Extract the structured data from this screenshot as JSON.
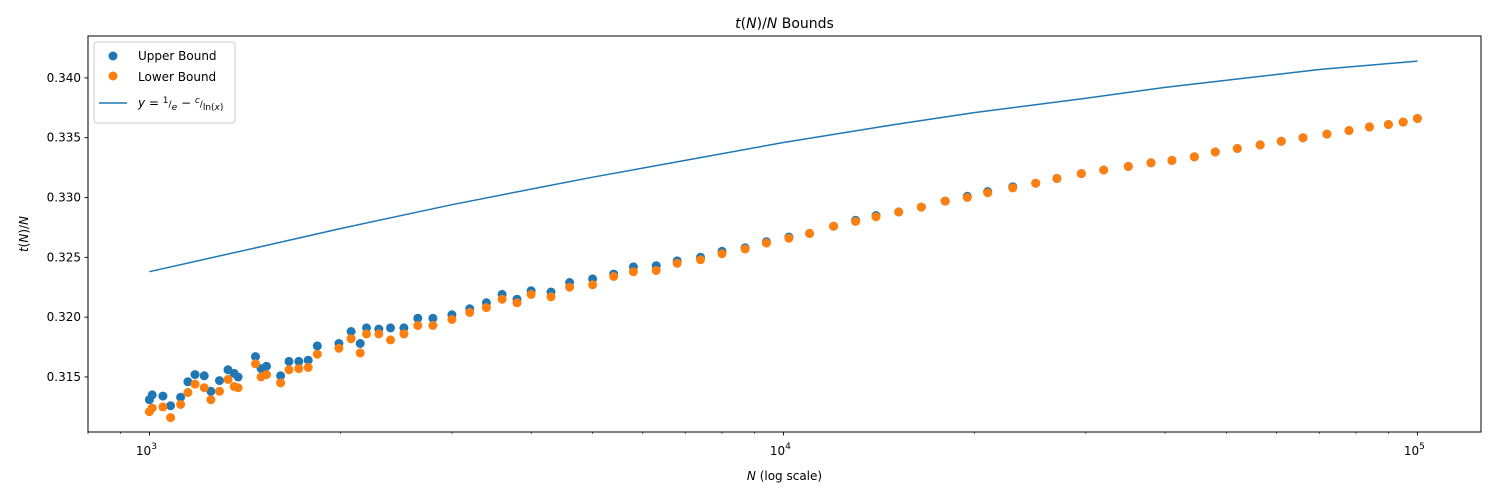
{
  "chart_data": {
    "type": "scatter",
    "title": "t(N)/N Bounds",
    "xlabel": "N (log scale)",
    "ylabel": "t(N)/N",
    "xscale": "log",
    "xlim": [
      800,
      126000
    ],
    "ylim": [
      0.3104,
      0.3435
    ],
    "grid": false,
    "legend_placement": "top-left",
    "x_ticks": [
      1000,
      10000,
      100000
    ],
    "x_tick_labels": [
      {
        "base": "10",
        "exp": "3"
      },
      {
        "base": "10",
        "exp": "4"
      },
      {
        "base": "10",
        "exp": "5"
      }
    ],
    "y_ticks": [
      0.315,
      0.32,
      0.325,
      0.33,
      0.335,
      0.34
    ],
    "y_tick_labels": [
      "0.315",
      "0.320",
      "0.325",
      "0.330",
      "0.335",
      "0.340"
    ],
    "series": [
      {
        "name": "Upper Bound",
        "kind": "scatter",
        "color": "#1f77b4",
        "x": [
          1000,
          1010,
          1050,
          1080,
          1120,
          1150,
          1180,
          1220,
          1250,
          1290,
          1330,
          1360,
          1380,
          1470,
          1500,
          1530,
          1610,
          1660,
          1720,
          1780,
          1840,
          1990,
          2080,
          2150,
          2200,
          2300,
          2400,
          2520,
          2650,
          2800,
          3000,
          3200,
          3400,
          3600,
          3800,
          4000,
          4300,
          4600,
          5000,
          5400,
          5800,
          6300,
          6800,
          7400,
          8000,
          8700,
          9400,
          10200,
          11000,
          12000,
          13000,
          14000,
          15200,
          16500,
          18000,
          19500,
          21000,
          23000,
          25000,
          27000,
          29500,
          32000,
          35000,
          38000,
          41000,
          44500,
          48000,
          52000,
          56500,
          61000,
          66000,
          72000,
          78000,
          84000,
          90000,
          95000,
          100000
        ],
        "y": [
          0.3131,
          0.3135,
          0.3134,
          0.3126,
          0.3133,
          0.3146,
          0.3152,
          0.3151,
          0.3138,
          0.3147,
          0.3156,
          0.3153,
          0.315,
          0.3167,
          0.3157,
          0.3159,
          0.3151,
          0.3163,
          0.3163,
          0.3164,
          0.3176,
          0.3178,
          0.3188,
          0.3178,
          0.3191,
          0.319,
          0.3191,
          0.3191,
          0.3199,
          0.3199,
          0.3202,
          0.3207,
          0.3212,
          0.3219,
          0.3215,
          0.3222,
          0.3221,
          0.3229,
          0.3232,
          0.3236,
          0.3242,
          0.3243,
          0.3247,
          0.325,
          0.3255,
          0.3258,
          0.3263,
          0.3267,
          0.327,
          0.3276,
          0.3281,
          0.3285,
          0.3288,
          0.3292,
          0.3297,
          0.3301,
          0.3305,
          0.3309,
          0.3312,
          0.3316,
          0.332,
          0.3323,
          0.3326,
          0.3329,
          0.3331,
          0.3334,
          0.3338,
          0.3341,
          0.3344,
          0.3347,
          0.335,
          0.3353,
          0.3356,
          0.3359,
          0.3361,
          0.3363,
          0.3366
        ]
      },
      {
        "name": "Lower Bound",
        "kind": "scatter",
        "color": "#ff7f0e",
        "x": [
          1000,
          1010,
          1050,
          1080,
          1120,
          1150,
          1180,
          1220,
          1250,
          1290,
          1330,
          1360,
          1380,
          1470,
          1500,
          1530,
          1610,
          1660,
          1720,
          1780,
          1840,
          1990,
          2080,
          2150,
          2200,
          2300,
          2400,
          2520,
          2650,
          2800,
          3000,
          3200,
          3400,
          3600,
          3800,
          4000,
          4300,
          4600,
          5000,
          5400,
          5800,
          6300,
          6800,
          7400,
          8000,
          8700,
          9400,
          10200,
          11000,
          12000,
          13000,
          14000,
          15200,
          16500,
          18000,
          19500,
          21000,
          23000,
          25000,
          27000,
          29500,
          32000,
          35000,
          38000,
          41000,
          44500,
          48000,
          52000,
          56500,
          61000,
          66000,
          72000,
          78000,
          84000,
          90000,
          95000,
          100000
        ],
        "y": [
          0.3121,
          0.3124,
          0.3125,
          0.3116,
          0.3127,
          0.3137,
          0.3144,
          0.3141,
          0.3131,
          0.3138,
          0.3148,
          0.3142,
          0.3141,
          0.3161,
          0.315,
          0.3152,
          0.3145,
          0.3156,
          0.3157,
          0.3158,
          0.3169,
          0.3174,
          0.3182,
          0.317,
          0.3186,
          0.3186,
          0.3181,
          0.3186,
          0.3193,
          0.3193,
          0.3198,
          0.3204,
          0.3208,
          0.3215,
          0.3212,
          0.3219,
          0.3217,
          0.3225,
          0.3227,
          0.3234,
          0.3238,
          0.3239,
          0.3245,
          0.3248,
          0.3253,
          0.3257,
          0.3262,
          0.3266,
          0.327,
          0.3276,
          0.328,
          0.3284,
          0.3288,
          0.3292,
          0.3297,
          0.33,
          0.3304,
          0.3308,
          0.3312,
          0.3316,
          0.332,
          0.3323,
          0.3326,
          0.3329,
          0.3331,
          0.3334,
          0.3338,
          0.3341,
          0.3344,
          0.3347,
          0.335,
          0.3353,
          0.3356,
          0.3359,
          0.3361,
          0.3363,
          0.3366
        ]
      },
      {
        "name": "y = 1/e − c/ln(x)",
        "kind": "line",
        "color": "#1f77b4",
        "x": [
          1000,
          1500,
          2000,
          3000,
          4000,
          5000,
          7000,
          10000,
          15000,
          20000,
          30000,
          40000,
          50000,
          70000,
          100000
        ],
        "y": [
          0.3238,
          0.3259,
          0.3274,
          0.3294,
          0.3307,
          0.3317,
          0.3331,
          0.3346,
          0.3361,
          0.3371,
          0.3383,
          0.3392,
          0.3398,
          0.3407,
          0.3414
        ]
      }
    ]
  }
}
